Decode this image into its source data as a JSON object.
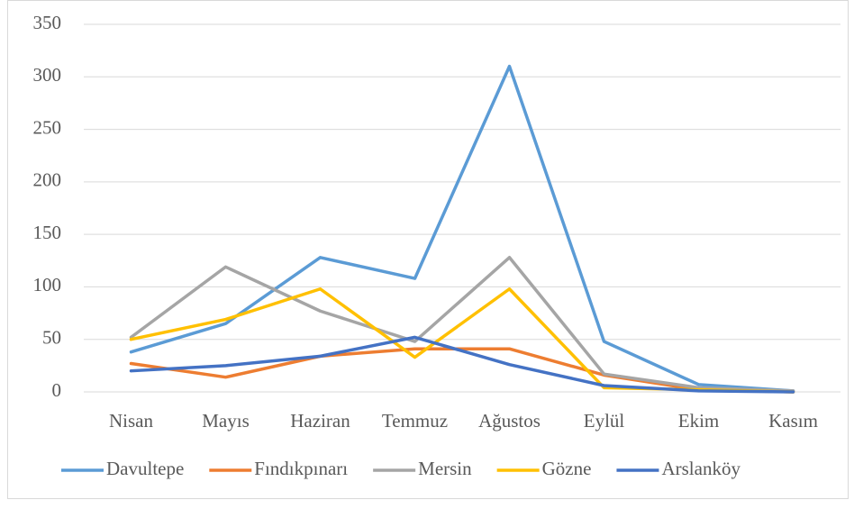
{
  "chart_data": {
    "type": "line",
    "categories": [
      "Nisan",
      "Mayıs",
      "Haziran",
      "Temmuz",
      "Ağustos",
      "Eylül",
      "Ekim",
      "Kasım"
    ],
    "series": [
      {
        "name": "Davultepe",
        "color": "#5b9bd5",
        "values": [
          38,
          65,
          128,
          108,
          310,
          48,
          7,
          1
        ]
      },
      {
        "name": "Fındıkpınarı",
        "color": "#ed7d31",
        "values": [
          27,
          14,
          34,
          41,
          41,
          16,
          2,
          0
        ]
      },
      {
        "name": "Mersin",
        "color": "#a5a5a5",
        "values": [
          52,
          119,
          77,
          48,
          128,
          17,
          4,
          1
        ]
      },
      {
        "name": "Gözne",
        "color": "#ffc000",
        "values": [
          50,
          69,
          98,
          33,
          98,
          4,
          2,
          0
        ]
      },
      {
        "name": "Arslanköy",
        "color": "#4472c4",
        "values": [
          20,
          25,
          34,
          52,
          26,
          6,
          1,
          0
        ]
      }
    ],
    "ylim": [
      0,
      350
    ],
    "yticks": [
      0,
      50,
      100,
      150,
      200,
      250,
      300,
      350
    ],
    "grid": true,
    "legend": "bottom"
  }
}
